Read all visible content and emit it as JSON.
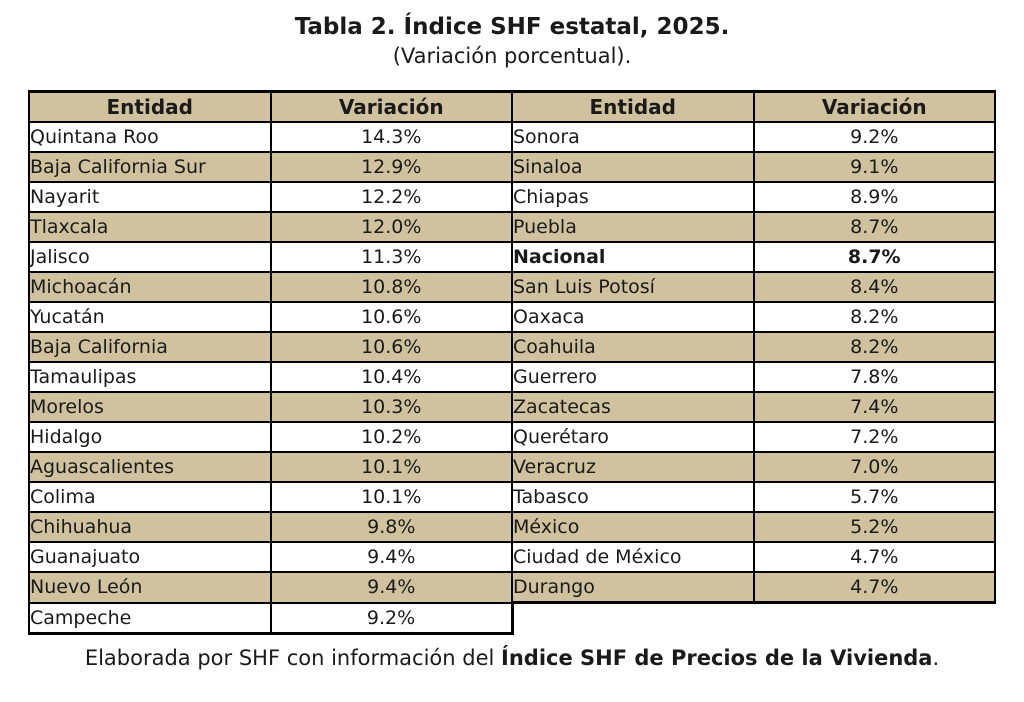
{
  "title": "Tabla 2. Índice SHF estatal, 2025.",
  "subtitle": "(Variación porcentual).",
  "colors": {
    "band": "#d0c29e",
    "border": "#000000",
    "text": "#1a1a1a",
    "background": "#ffffff"
  },
  "table": {
    "headers": [
      "Entidad",
      "Variación",
      "Entidad",
      "Variación"
    ],
    "rows": [
      {
        "left": {
          "entity": "Quintana Roo",
          "value": "14.3%"
        },
        "right": {
          "entity": "Sonora",
          "value": "9.2%"
        }
      },
      {
        "left": {
          "entity": "Baja California Sur",
          "value": "12.9%"
        },
        "right": {
          "entity": "Sinaloa",
          "value": "9.1%"
        }
      },
      {
        "left": {
          "entity": "Nayarit",
          "value": "12.2%"
        },
        "right": {
          "entity": "Chiapas",
          "value": "8.9%"
        }
      },
      {
        "left": {
          "entity": "Tlaxcala",
          "value": "12.0%"
        },
        "right": {
          "entity": "Puebla",
          "value": "8.7%"
        }
      },
      {
        "left": {
          "entity": "Jalisco",
          "value": "11.3%"
        },
        "right": {
          "entity": "Nacional",
          "value": "8.7%",
          "bold": true
        }
      },
      {
        "left": {
          "entity": "Michoacán",
          "value": "10.8%"
        },
        "right": {
          "entity": "San Luis Potosí",
          "value": "8.4%"
        }
      },
      {
        "left": {
          "entity": "Yucatán",
          "value": "10.6%"
        },
        "right": {
          "entity": "Oaxaca",
          "value": "8.2%"
        }
      },
      {
        "left": {
          "entity": "Baja California",
          "value": "10.6%"
        },
        "right": {
          "entity": "Coahuila",
          "value": "8.2%"
        }
      },
      {
        "left": {
          "entity": "Tamaulipas",
          "value": "10.4%"
        },
        "right": {
          "entity": "Guerrero",
          "value": "7.8%"
        }
      },
      {
        "left": {
          "entity": "Morelos",
          "value": "10.3%"
        },
        "right": {
          "entity": "Zacatecas",
          "value": "7.4%"
        }
      },
      {
        "left": {
          "entity": "Hidalgo",
          "value": "10.2%"
        },
        "right": {
          "entity": "Querétaro",
          "value": "7.2%"
        }
      },
      {
        "left": {
          "entity": "Aguascalientes",
          "value": "10.1%"
        },
        "right": {
          "entity": "Veracruz",
          "value": "7.0%"
        }
      },
      {
        "left": {
          "entity": "Colima",
          "value": "10.1%"
        },
        "right": {
          "entity": "Tabasco",
          "value": "5.7%"
        }
      },
      {
        "left": {
          "entity": "Chihuahua",
          "value": "9.8%"
        },
        "right": {
          "entity": "México",
          "value": "5.2%"
        }
      },
      {
        "left": {
          "entity": "Guanajuato",
          "value": "9.4%"
        },
        "right": {
          "entity": "Ciudad de México",
          "value": "4.7%"
        }
      },
      {
        "left": {
          "entity": "Nuevo León",
          "value": "9.4%"
        },
        "right": {
          "entity": "Durango",
          "value": "4.7%"
        }
      },
      {
        "left": {
          "entity": "Campeche",
          "value": "9.2%"
        },
        "right": null
      }
    ]
  },
  "footer": {
    "prefix": "Elaborada por SHF con información del ",
    "bold": "Índice SHF de Precios de la Vivienda",
    "suffix": "."
  }
}
